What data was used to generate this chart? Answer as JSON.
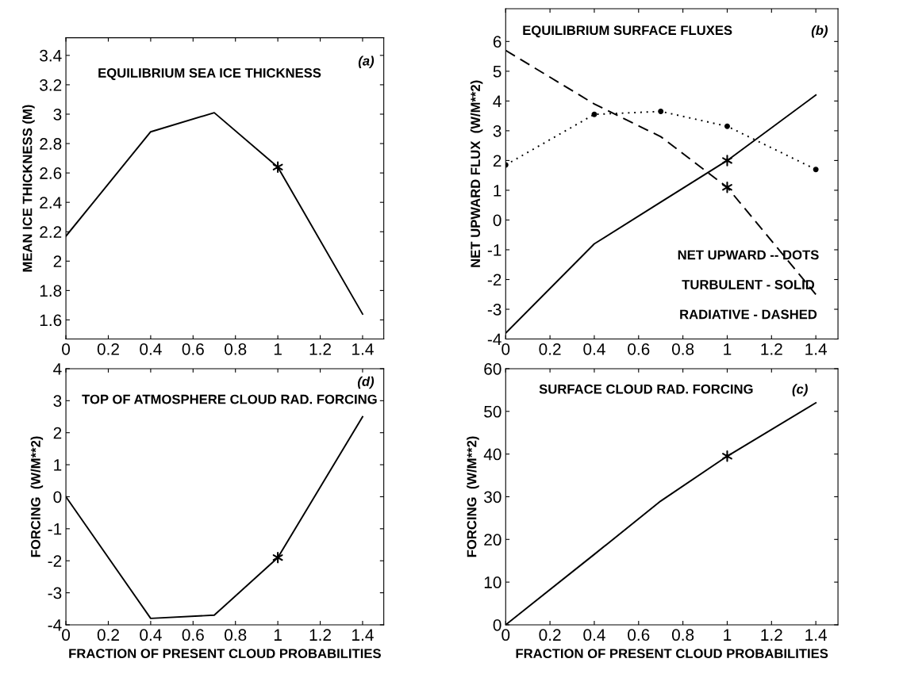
{
  "chart_data": [
    {
      "type": "line",
      "ylabel": "MEAN ICE THICKNESS (M)",
      "annotations": [
        "EQUILIBRIUM SEA ICE THICKNESS",
        "(a)"
      ],
      "x": [
        0,
        0.4,
        0.7,
        1,
        1.4
      ],
      "xlim": [
        0,
        1.5
      ],
      "xticks": [
        0,
        0.2,
        0.4,
        0.6,
        0.8,
        1,
        1.2,
        1.4
      ],
      "ylim": [
        1.47,
        3.52
      ],
      "yticks": [
        1.6,
        1.8,
        2,
        2.2,
        2.4,
        2.6,
        2.8,
        3,
        3.2,
        3.4
      ],
      "grid": false,
      "legend": false,
      "series": [
        {
          "color": "#000000",
          "line_style": "solid",
          "values": [
            2.17,
            2.88,
            3.01,
            2.64,
            1.64
          ]
        },
        {
          "type": "scatter",
          "color": "#000000",
          "marker": "cross",
          "values": [
            null,
            null,
            null,
            2.64,
            null
          ]
        }
      ]
    },
    {
      "type": "line",
      "ylabel": "NET UPWARD FLUX  (W/M**2)",
      "annotations": [
        "EQUILIBRIUM SURFACE FLUXES",
        "(b)",
        "NET UPWARD -- DOTS",
        "TURBULENT - SOLID",
        "RADIATIVE - DASHED"
      ],
      "x": [
        0,
        0.4,
        0.7,
        1,
        1.4
      ],
      "xlim": [
        0,
        1.5
      ],
      "xticks": [
        0,
        0.2,
        0.4,
        0.6,
        0.8,
        1,
        1.2,
        1.4
      ],
      "ylim": [
        -4,
        7.1
      ],
      "yticks": [
        -4,
        -3,
        -2,
        -1,
        0,
        1,
        2,
        3,
        4,
        5,
        6
      ],
      "grid": false,
      "legend": false,
      "series": [
        {
          "color": "#000000",
          "line_style": "dotted",
          "marker": "circle",
          "values": [
            1.85,
            3.55,
            3.65,
            3.15,
            1.7
          ]
        },
        {
          "color": "#000000",
          "line_style": "solid",
          "values": [
            -3.8,
            -0.8,
            0.6,
            2.0,
            4.2
          ]
        },
        {
          "color": "#000000",
          "line_style": "dashed",
          "values": [
            5.7,
            3.9,
            2.8,
            1.1,
            -2.5
          ]
        },
        {
          "type": "scatter",
          "color": "#000000",
          "marker": "cross",
          "values": [
            null,
            null,
            null,
            2.0,
            null
          ]
        },
        {
          "type": "scatter",
          "color": "#000000",
          "marker": "cross",
          "values": [
            null,
            null,
            null,
            1.1,
            null
          ]
        }
      ]
    },
    {
      "type": "line",
      "xlabel": "FRACTION OF PRESENT CLOUD PROBABILITIES",
      "ylabel": "FORCING  (W/M**2)",
      "annotations": [
        "TOP OF ATMOSPHERE CLOUD RAD. FORCING",
        "(d)"
      ],
      "x": [
        0,
        0.4,
        0.7,
        1,
        1.4
      ],
      "xlim": [
        0,
        1.5
      ],
      "xticks": [
        0,
        0.2,
        0.4,
        0.6,
        0.8,
        1,
        1.2,
        1.4
      ],
      "ylim": [
        -4,
        4
      ],
      "yticks": [
        -4,
        -3,
        -2,
        -1,
        0,
        1,
        2,
        3,
        4
      ],
      "grid": false,
      "legend": false,
      "series": [
        {
          "color": "#000000",
          "line_style": "solid",
          "values": [
            0,
            -3.8,
            -3.7,
            -1.9,
            2.5
          ]
        },
        {
          "type": "scatter",
          "color": "#000000",
          "marker": "cross",
          "values": [
            null,
            null,
            null,
            -1.9,
            null
          ]
        }
      ]
    },
    {
      "type": "line",
      "xlabel": "FRACTION OF PRESENT CLOUD PROBABILITIES",
      "ylabel": "FORCING  (W/M**2)",
      "annotations": [
        "SURFACE CLOUD RAD. FORCING",
        "(c)"
      ],
      "x": [
        0,
        0.4,
        0.7,
        1,
        1.4
      ],
      "xlim": [
        0,
        1.5
      ],
      "xticks": [
        0,
        0.2,
        0.4,
        0.6,
        0.8,
        1,
        1.2,
        1.4
      ],
      "ylim": [
        0,
        60
      ],
      "yticks": [
        0,
        10,
        20,
        30,
        40,
        50,
        60
      ],
      "grid": false,
      "legend": false,
      "series": [
        {
          "color": "#000000",
          "line_style": "solid",
          "values": [
            0,
            16.5,
            29,
            39.5,
            52
          ]
        },
        {
          "type": "scatter",
          "color": "#000000",
          "marker": "cross",
          "values": [
            null,
            null,
            null,
            39.5,
            null
          ]
        }
      ]
    }
  ]
}
